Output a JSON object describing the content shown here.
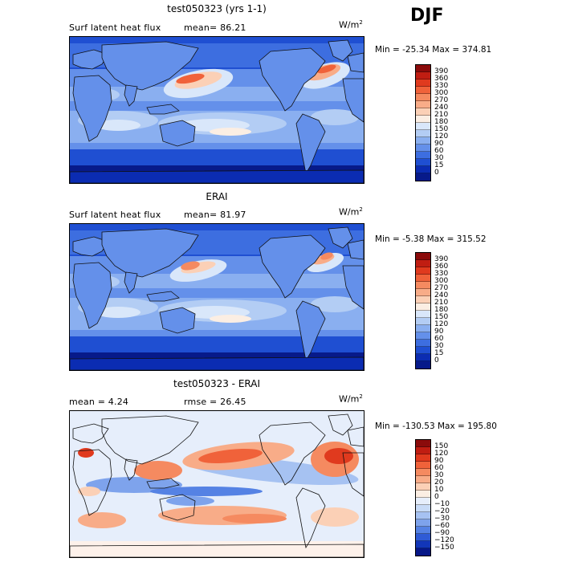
{
  "season_label": "DJF",
  "units_main": "W/m",
  "units_exp": "2",
  "panels": [
    {
      "title": "test050323 (yrs 1-1)",
      "info_left": "Surf latent heat flux",
      "info_right": "mean=  86.21",
      "minmax": "Min = -25.34  Max = 374.81"
    },
    {
      "title": "ERAI",
      "info_left": "Surf latent heat flux",
      "info_right": "mean=  81.97",
      "minmax": "Min =  -5.38  Max = 315.52"
    },
    {
      "title": "test050323 - ERAI",
      "info_left": "mean =    4.24",
      "info_right": "rmse =  26.45",
      "minmax": "Min = -130.53  Max = 195.80"
    }
  ],
  "colors": {
    "ocean_low": "#0a22a6",
    "ocean_mid": "#2f55d8",
    "ocean_light": "#7d9eef",
    "land": "#5a82e0",
    "warm": "#f0623a",
    "warm_light": "#f8b89a",
    "diff_bg": "#d2e4fa",
    "diff_red": "#e8502c"
  },
  "chart_data": [
    {
      "type": "heatmap",
      "title": "test050323 (yrs 1-1)",
      "variable": "Surf latent heat flux",
      "mean": 86.21,
      "min": -25.34,
      "max": 374.81,
      "units": "W/m2",
      "colorbar_levels": [
        390,
        360,
        330,
        300,
        270,
        240,
        210,
        180,
        150,
        120,
        90,
        60,
        30,
        15,
        0
      ],
      "colorbar_colors": [
        "#8b0b0b",
        "#c01d12",
        "#e03a1e",
        "#f0623a",
        "#f58a60",
        "#f8ac88",
        "#fbd0b6",
        "#fbeee3",
        "#d9e7fa",
        "#b3cdf4",
        "#8aaff0",
        "#6490ea",
        "#3d6ee0",
        "#1f4fd2",
        "#0b2cb2",
        "#071a8a"
      ]
    },
    {
      "type": "heatmap",
      "title": "ERAI",
      "variable": "Surf latent heat flux",
      "mean": 81.97,
      "min": -5.38,
      "max": 315.52,
      "units": "W/m2",
      "colorbar_levels": [
        390,
        360,
        330,
        300,
        270,
        240,
        210,
        180,
        150,
        120,
        90,
        60,
        30,
        15,
        0
      ],
      "colorbar_colors": [
        "#8b0b0b",
        "#c01d12",
        "#e03a1e",
        "#f0623a",
        "#f58a60",
        "#f8ac88",
        "#fbd0b6",
        "#fbeee3",
        "#d9e7fa",
        "#b3cdf4",
        "#8aaff0",
        "#6490ea",
        "#3d6ee0",
        "#1f4fd2",
        "#0b2cb2",
        "#071a8a"
      ]
    },
    {
      "type": "heatmap",
      "title": "test050323 - ERAI",
      "mean": 4.24,
      "rmse": 26.45,
      "min": -130.53,
      "max": 195.8,
      "units": "W/m2",
      "colorbar_levels": [
        150,
        120,
        90,
        60,
        30,
        20,
        10,
        0,
        -10,
        -20,
        -30,
        -60,
        -90,
        -120,
        -150
      ],
      "colorbar_colors": [
        "#8b0b0b",
        "#c01d12",
        "#e03a1e",
        "#f0623a",
        "#f58a60",
        "#f8ac88",
        "#fbd0b6",
        "#fbeee3",
        "#e6eefb",
        "#c8dbf7",
        "#a6c2f2",
        "#7ea3ec",
        "#5582e4",
        "#2f5bd6",
        "#1236b8",
        "#061787"
      ]
    }
  ]
}
